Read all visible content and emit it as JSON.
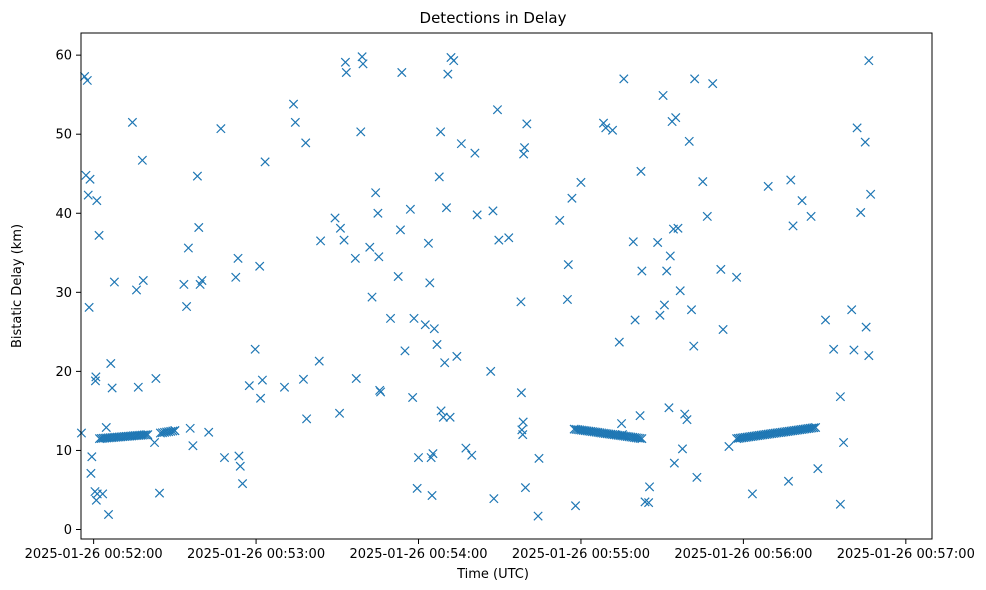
{
  "chart_data": {
    "type": "scatter",
    "title": "Detections in Delay",
    "xlabel": "Time (UTC)",
    "ylabel": "Bistatic Delay (km)",
    "marker": "x",
    "color": "#1f77b4",
    "xlim_sec": [
      -28,
      1858
    ],
    "ylim": [
      -1.2,
      62.8
    ],
    "x_ticks": [
      {
        "sec": 0,
        "label": "2025-01-26 00:52:00"
      },
      {
        "sec": 360,
        "label": "2025-01-26 00:53:00"
      },
      {
        "sec": 720,
        "label": "2025-01-26 00:54:00"
      },
      {
        "sec": 1080,
        "label": "2025-01-26 00:55:00"
      },
      {
        "sec": 1440,
        "label": "2025-01-26 00:56:00"
      },
      {
        "sec": 1800,
        "label": "2025-01-26 00:57:00"
      }
    ],
    "y_ticks": [
      {
        "value": 0,
        "label": "0"
      },
      {
        "value": 10,
        "label": "10"
      },
      {
        "value": 20,
        "label": "20"
      },
      {
        "value": 30,
        "label": "30"
      },
      {
        "value": 40,
        "label": "40"
      },
      {
        "value": 50,
        "label": "50"
      },
      {
        "value": 60,
        "label": "60"
      }
    ],
    "tracks": [
      {
        "x_start": 13,
        "x_end": 120,
        "y_start": 11.5,
        "y_end": 12.0,
        "count": 28
      },
      {
        "x_start": 148,
        "x_end": 180,
        "y_start": 12.2,
        "y_end": 12.5,
        "count": 8
      },
      {
        "x_start": 1065,
        "x_end": 1215,
        "y_start": 12.7,
        "y_end": 11.5,
        "count": 38
      },
      {
        "x_start": 1425,
        "x_end": 1600,
        "y_start": 11.5,
        "y_end": 12.9,
        "count": 46
      }
    ],
    "x_unit": "seconds after 2025-01-26 00:52:00 UTC",
    "points": [
      [
        -27,
        12.2
      ],
      [
        -20,
        57.3
      ],
      [
        -17,
        44.8
      ],
      [
        -14,
        56.8
      ],
      [
        -12,
        42.3
      ],
      [
        -10,
        28.1
      ],
      [
        -8,
        44.3
      ],
      [
        -6,
        7.1
      ],
      [
        -4,
        9.2
      ],
      [
        3,
        4.8
      ],
      [
        4,
        18.8
      ],
      [
        5,
        19.3
      ],
      [
        6,
        3.7
      ],
      [
        7,
        41.6
      ],
      [
        8,
        4.5
      ],
      [
        12,
        37.2
      ],
      [
        20,
        4.5
      ],
      [
        28,
        12.9
      ],
      [
        33,
        1.9
      ],
      [
        38,
        21
      ],
      [
        41,
        17.9
      ],
      [
        46,
        31.3
      ],
      [
        86,
        51.5
      ],
      [
        95,
        30.3
      ],
      [
        99,
        18
      ],
      [
        110,
        31.5
      ],
      [
        108,
        46.7
      ],
      [
        135,
        11
      ],
      [
        138,
        19.1
      ],
      [
        146,
        4.6
      ],
      [
        180,
        12.5
      ],
      [
        200,
        31
      ],
      [
        206,
        28.2
      ],
      [
        210,
        35.6
      ],
      [
        214,
        12.8
      ],
      [
        220,
        10.6
      ],
      [
        230,
        44.7
      ],
      [
        233,
        38.2
      ],
      [
        236,
        31
      ],
      [
        240,
        31.5
      ],
      [
        255,
        12.3
      ],
      [
        282,
        50.7
      ],
      [
        290,
        9.1
      ],
      [
        315,
        31.9
      ],
      [
        320,
        34.3
      ],
      [
        322,
        9.3
      ],
      [
        325,
        8
      ],
      [
        330,
        5.8
      ],
      [
        345,
        18.2
      ],
      [
        358,
        22.8
      ],
      [
        368,
        33.3
      ],
      [
        370,
        16.6
      ],
      [
        374,
        18.9
      ],
      [
        380,
        46.5
      ],
      [
        423,
        18
      ],
      [
        443,
        53.8
      ],
      [
        447,
        51.5
      ],
      [
        465,
        19
      ],
      [
        470,
        48.9
      ],
      [
        472,
        14
      ],
      [
        500,
        21.3
      ],
      [
        503,
        36.5
      ],
      [
        535,
        39.4
      ],
      [
        545,
        14.7
      ],
      [
        547,
        38.1
      ],
      [
        555,
        36.6
      ],
      [
        558,
        59.1
      ],
      [
        560,
        57.8
      ],
      [
        580,
        34.3
      ],
      [
        582,
        19.1
      ],
      [
        592,
        50.3
      ],
      [
        595,
        59.8
      ],
      [
        597,
        58.9
      ],
      [
        612,
        35.7
      ],
      [
        617,
        29.4
      ],
      [
        625,
        42.6
      ],
      [
        630,
        40
      ],
      [
        632,
        34.5
      ],
      [
        634,
        17.6
      ],
      [
        636,
        17.4
      ],
      [
        658,
        26.7
      ],
      [
        675,
        32
      ],
      [
        680,
        37.9
      ],
      [
        683,
        57.8
      ],
      [
        690,
        22.6
      ],
      [
        702,
        40.5
      ],
      [
        707,
        16.7
      ],
      [
        710,
        26.7
      ],
      [
        717,
        5.2
      ],
      [
        720,
        9.1
      ],
      [
        735,
        25.9
      ],
      [
        742,
        36.2
      ],
      [
        745,
        31.2
      ],
      [
        748,
        9.1
      ],
      [
        750,
        4.3
      ],
      [
        752,
        9.6
      ],
      [
        755,
        25.4
      ],
      [
        761,
        23.4
      ],
      [
        766,
        44.6
      ],
      [
        769,
        50.3
      ],
      [
        770,
        15
      ],
      [
        775,
        14.2
      ],
      [
        778,
        21.1
      ],
      [
        782,
        40.7
      ],
      [
        785,
        57.6
      ],
      [
        790,
        14.2
      ],
      [
        792,
        59.7
      ],
      [
        798,
        59.3
      ],
      [
        805,
        21.9
      ],
      [
        815,
        48.8
      ],
      [
        825,
        10.3
      ],
      [
        838,
        9.4
      ],
      [
        845,
        47.6
      ],
      [
        850,
        39.8
      ],
      [
        880,
        20
      ],
      [
        885,
        40.3
      ],
      [
        887,
        3.9
      ],
      [
        895,
        53.1
      ],
      [
        898,
        36.6
      ],
      [
        920,
        36.9
      ],
      [
        947,
        28.8
      ],
      [
        948,
        17.3
      ],
      [
        949,
        12.6
      ],
      [
        951,
        12
      ],
      [
        952,
        13.6
      ],
      [
        953,
        47.5
      ],
      [
        955,
        48.3
      ],
      [
        957,
        5.3
      ],
      [
        960,
        51.3
      ],
      [
        985,
        1.7
      ],
      [
        987,
        9
      ],
      [
        1033,
        39.1
      ],
      [
        1050,
        29.1
      ],
      [
        1052,
        33.5
      ],
      [
        1060,
        41.9
      ],
      [
        1068,
        3
      ],
      [
        1080,
        43.9
      ],
      [
        1130,
        51.4
      ],
      [
        1135,
        50.8
      ],
      [
        1150,
        50.5
      ],
      [
        1165,
        23.7
      ],
      [
        1170,
        13.4
      ],
      [
        1172,
        12
      ],
      [
        1175,
        57
      ],
      [
        1196,
        36.4
      ],
      [
        1200,
        26.5
      ],
      [
        1211,
        14.4
      ],
      [
        1213,
        45.3
      ],
      [
        1215,
        32.7
      ],
      [
        1222,
        3.5
      ],
      [
        1230,
        3.4
      ],
      [
        1232,
        5.4
      ],
      [
        1250,
        36.3
      ],
      [
        1255,
        27.1
      ],
      [
        1262,
        54.9
      ],
      [
        1265,
        28.4
      ],
      [
        1270,
        32.7
      ],
      [
        1275,
        15.4
      ],
      [
        1278,
        34.6
      ],
      [
        1282,
        51.6
      ],
      [
        1285,
        38
      ],
      [
        1287,
        8.4
      ],
      [
        1290,
        52.1
      ],
      [
        1295,
        38.1
      ],
      [
        1300,
        30.2
      ],
      [
        1305,
        10.2
      ],
      [
        1310,
        14.6
      ],
      [
        1315,
        13.9
      ],
      [
        1320,
        49.1
      ],
      [
        1325,
        27.8
      ],
      [
        1330,
        23.2
      ],
      [
        1332,
        57
      ],
      [
        1337,
        6.6
      ],
      [
        1350,
        44
      ],
      [
        1360,
        39.6
      ],
      [
        1372,
        56.4
      ],
      [
        1390,
        32.9
      ],
      [
        1395,
        25.3
      ],
      [
        1408,
        10.5
      ],
      [
        1425,
        31.9
      ],
      [
        1460,
        4.5
      ],
      [
        1495,
        43.4
      ],
      [
        1540,
        6.1
      ],
      [
        1545,
        44.2
      ],
      [
        1550,
        38.4
      ],
      [
        1570,
        41.6
      ],
      [
        1590,
        39.6
      ],
      [
        1605,
        7.7
      ],
      [
        1622,
        26.5
      ],
      [
        1640,
        22.8
      ],
      [
        1655,
        16.8
      ],
      [
        1655,
        3.2
      ],
      [
        1662,
        11
      ],
      [
        1680,
        27.8
      ],
      [
        1685,
        22.7
      ],
      [
        1692,
        50.8
      ],
      [
        1700,
        40.1
      ],
      [
        1710,
        49
      ],
      [
        1712,
        25.6
      ],
      [
        1718,
        59.3
      ],
      [
        1722,
        42.4
      ],
      [
        1718,
        22
      ]
    ]
  }
}
